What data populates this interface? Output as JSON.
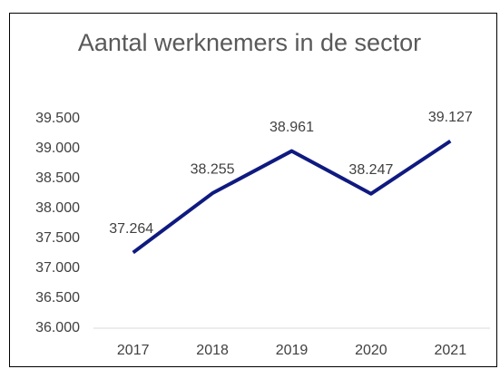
{
  "chart_data": {
    "type": "line",
    "title": "Aantal werknemers in de sector",
    "categories": [
      "2017",
      "2018",
      "2019",
      "2020",
      "2021"
    ],
    "series": [
      {
        "name": "Aantal werknemers",
        "color": "#0f1a80",
        "values": [
          37264,
          38255,
          38961,
          38247,
          39127
        ],
        "value_labels": [
          "37.264",
          "38.255",
          "38.961",
          "38.247",
          "39.127"
        ]
      }
    ],
    "ylim": [
      36000,
      39500
    ],
    "yticks": [
      {
        "value": 36000,
        "label": "36.000"
      },
      {
        "value": 36500,
        "label": "36.500"
      },
      {
        "value": 37000,
        "label": "37.000"
      },
      {
        "value": 37500,
        "label": "37.500"
      },
      {
        "value": 38000,
        "label": "38.000"
      },
      {
        "value": 38500,
        "label": "38.500"
      },
      {
        "value": 39000,
        "label": "39.000"
      },
      {
        "value": 39500,
        "label": "39.500"
      }
    ],
    "grid": false
  }
}
